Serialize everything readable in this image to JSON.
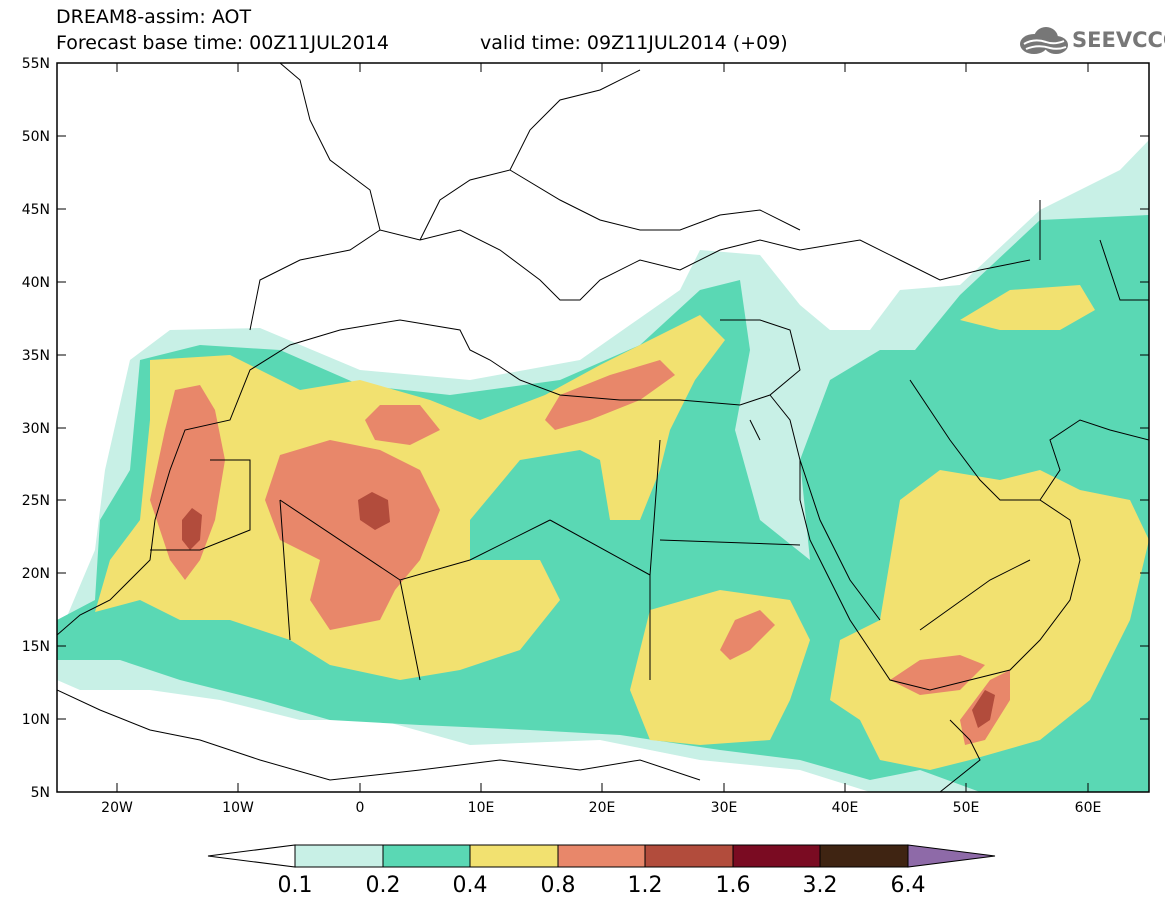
{
  "header": {
    "title": "DREAM8-assim: AOT",
    "base_time": "Forecast base time: 00Z11JUL2014",
    "valid_time": "valid time: 09Z11JUL2014 (+09)",
    "logo_text": "SEEVCCC",
    "logo_icon": "cloud-icon"
  },
  "map": {
    "lat_labels": [
      "55N",
      "50N",
      "45N",
      "40N",
      "35N",
      "30N",
      "25N",
      "20N",
      "15N",
      "10N",
      "5N"
    ],
    "lon_labels": [
      "20W",
      "10W",
      "0",
      "10E",
      "20E",
      "30E",
      "40E",
      "50E",
      "60E"
    ],
    "lat_range": [
      5,
      55
    ],
    "lon_range": [
      -25,
      65
    ]
  },
  "colorbar": {
    "levels": [
      "0.1",
      "0.2",
      "0.4",
      "0.8",
      "1.2",
      "1.6",
      "3.2",
      "6.4"
    ],
    "colors": [
      "#ffffff",
      "#c8f0e6",
      "#5ad8b4",
      "#f2e170",
      "#e8876a",
      "#b24c3c",
      "#7a0b22",
      "#3f2412",
      "#8e6aa8"
    ]
  },
  "palette": {
    "c01": "#c8f0e6",
    "c02": "#5ad8b4",
    "c04": "#f2e170",
    "c08": "#e8876a",
    "c12": "#b24c3c"
  }
}
